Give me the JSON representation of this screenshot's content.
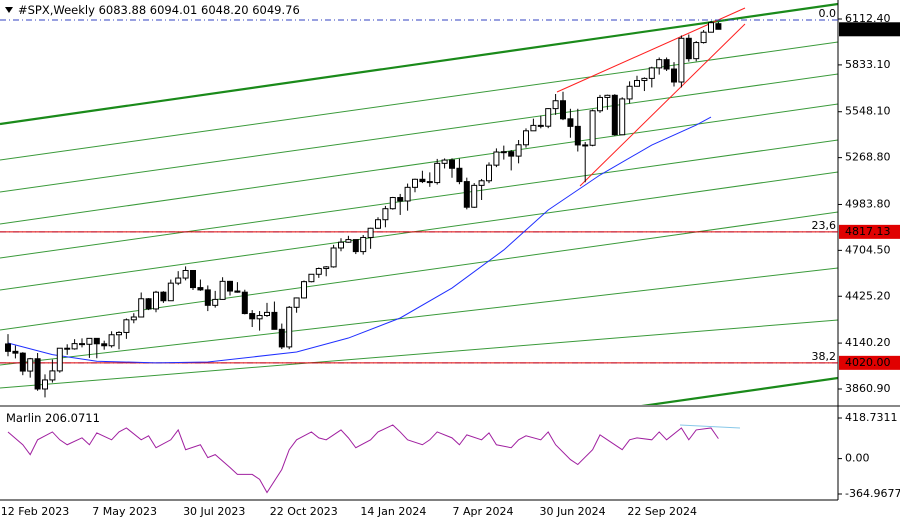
{
  "chart_data": [
    {
      "type": "candlestick",
      "title": "#SPX,Weekly",
      "header_values": [
        "6083.88",
        "6094.01",
        "6048.20",
        "6049.76"
      ],
      "candles": [
        [
          4135,
          4195,
          4060,
          4090
        ],
        [
          4090,
          4125,
          4047,
          4079
        ],
        [
          4079,
          4085,
          3945,
          3970
        ],
        [
          3970,
          4050,
          3930,
          4045
        ],
        [
          4045,
          4080,
          3850,
          3861
        ],
        [
          3861,
          3950,
          3810,
          3916
        ],
        [
          3916,
          4040,
          3900,
          3971
        ],
        [
          3971,
          4110,
          3960,
          4109
        ],
        [
          4109,
          4133,
          4069,
          4105
        ],
        [
          4105,
          4164,
          4100,
          4137
        ],
        [
          4137,
          4169,
          4114,
          4133
        ],
        [
          4133,
          4170,
          4050,
          4169
        ],
        [
          4169,
          4170,
          4048,
          4136
        ],
        [
          4136,
          4155,
          4100,
          4124
        ],
        [
          4124,
          4212,
          4113,
          4191
        ],
        [
          4191,
          4212,
          4103,
          4205
        ],
        [
          4205,
          4290,
          4166,
          4282
        ],
        [
          4282,
          4322,
          4261,
          4299
        ],
        [
          4299,
          4448,
          4296,
          4410
        ],
        [
          4410,
          4414,
          4341,
          4348
        ],
        [
          4348,
          4458,
          4328,
          4450
        ],
        [
          4450,
          4456,
          4385,
          4398
        ],
        [
          4398,
          4527,
          4397,
          4505
        ],
        [
          4505,
          4578,
          4493,
          4536
        ],
        [
          4536,
          4607,
          4522,
          4582
        ],
        [
          4582,
          4584,
          4463,
          4478
        ],
        [
          4478,
          4527,
          4458,
          4464
        ],
        [
          4464,
          4491,
          4335,
          4370
        ],
        [
          4370,
          4458,
          4356,
          4406
        ],
        [
          4406,
          4541,
          4404,
          4516
        ],
        [
          4516,
          4519,
          4430,
          4457
        ],
        [
          4457,
          4511,
          4447,
          4450
        ],
        [
          4450,
          4465,
          4315,
          4320
        ],
        [
          4320,
          4341,
          4238,
          4288
        ],
        [
          4288,
          4335,
          4216,
          4308
        ],
        [
          4308,
          4385,
          4300,
          4327
        ],
        [
          4327,
          4393,
          4223,
          4224
        ],
        [
          4224,
          4259,
          4104,
          4117
        ],
        [
          4117,
          4366,
          4103,
          4358
        ],
        [
          4358,
          4418,
          4325,
          4415
        ],
        [
          4415,
          4521,
          4411,
          4514
        ],
        [
          4514,
          4560,
          4510,
          4559
        ],
        [
          4559,
          4600,
          4537,
          4594
        ],
        [
          4594,
          4609,
          4547,
          4604
        ],
        [
          4604,
          4738,
          4599,
          4719
        ],
        [
          4719,
          4778,
          4699,
          4754
        ],
        [
          4754,
          4793,
          4751,
          4770
        ],
        [
          4770,
          4770,
          4682,
          4697
        ],
        [
          4697,
          4798,
          4679,
          4783
        ],
        [
          4783,
          4842,
          4714,
          4839
        ],
        [
          4839,
          4906,
          4835,
          4891
        ],
        [
          4891,
          4975,
          4845,
          4958
        ],
        [
          4958,
          5030,
          4952,
          5026
        ],
        [
          5026,
          5048,
          4920,
          5005
        ],
        [
          5005,
          5111,
          4946,
          5088
        ],
        [
          5088,
          5141,
          5058,
          5137
        ],
        [
          5137,
          5189,
          5114,
          5123
        ],
        [
          5123,
          5179,
          5091,
          5117
        ],
        [
          5117,
          5261,
          5105,
          5234
        ],
        [
          5234,
          5264,
          5203,
          5254
        ],
        [
          5254,
          5264,
          5146,
          5204
        ],
        [
          5204,
          5263,
          5107,
          5123
        ],
        [
          5123,
          5147,
          4954,
          4967
        ],
        [
          4967,
          5114,
          4963,
          5100
        ],
        [
          5100,
          5139,
          5011,
          5128
        ],
        [
          5128,
          5240,
          5114,
          5223
        ],
        [
          5223,
          5325,
          5211,
          5303
        ],
        [
          5303,
          5342,
          5257,
          5305
        ],
        [
          5305,
          5315,
          5191,
          5278
        ],
        [
          5278,
          5376,
          5234,
          5347
        ],
        [
          5347,
          5447,
          5330,
          5432
        ],
        [
          5432,
          5506,
          5432,
          5465
        ],
        [
          5465,
          5524,
          5447,
          5460
        ],
        [
          5460,
          5570,
          5448,
          5567
        ],
        [
          5567,
          5656,
          5529,
          5615
        ],
        [
          5615,
          5670,
          5497,
          5505
        ],
        [
          5505,
          5566,
          5390,
          5459
        ],
        [
          5459,
          5566,
          5306,
          5346
        ],
        [
          5346,
          5364,
          5119,
          5344
        ],
        [
          5344,
          5562,
          5338,
          5554
        ],
        [
          5554,
          5651,
          5541,
          5635
        ],
        [
          5635,
          5652,
          5560,
          5648
        ],
        [
          5648,
          5655,
          5402,
          5408
        ],
        [
          5408,
          5636,
          5406,
          5626
        ],
        [
          5626,
          5733,
          5598,
          5703
        ],
        [
          5703,
          5767,
          5701,
          5738
        ],
        [
          5738,
          5757,
          5674,
          5751
        ],
        [
          5751,
          5822,
          5696,
          5815
        ],
        [
          5815,
          5878,
          5774,
          5865
        ],
        [
          5865,
          5878,
          5796,
          5808
        ],
        [
          5808,
          5850,
          5702,
          5729
        ],
        [
          5729,
          6012,
          5696,
          5995
        ],
        [
          5995,
          6018,
          5853,
          5871
        ],
        [
          5871,
          5978,
          5855,
          5969
        ],
        [
          5969,
          6045,
          5963,
          6032
        ],
        [
          6032,
          6100,
          6031,
          6090
        ],
        [
          6083.88,
          6094.01,
          6048.2,
          6049.76
        ]
      ],
      "ma": {
        "color": "#2030ff",
        "x": [
          0,
          6,
          12,
          20,
          27,
          39,
          46,
          53,
          60,
          67,
          73,
          80,
          87,
          93,
          95
        ],
        "values": [
          4141,
          4070,
          4030,
          4020,
          4025,
          4086,
          4171,
          4293,
          4475,
          4707,
          4950,
          5163,
          5345,
          5467,
          5516
        ]
      },
      "levels": [
        {
          "value": 4817.13,
          "label": "4817.13",
          "color": "#e00000"
        },
        {
          "value": 4020,
          "label": "4020.00",
          "color": "#e00000"
        }
      ],
      "fib": [
        {
          "value": 6106,
          "label": "0.0"
        },
        {
          "value": 4817.13,
          "label": "23,6"
        },
        {
          "value": 4020,
          "label": "38,2"
        }
      ],
      "ylim": [
        3763.5,
        6228
      ],
      "yticks": [
        {
          "value": 6112.4,
          "label": "6112.40"
        },
        {
          "value": 5833.1,
          "label": "5833.10"
        },
        {
          "value": 5548.1,
          "label": "5548.10"
        },
        {
          "value": 5268.8,
          "label": "5268.80"
        },
        {
          "value": 4983.8,
          "label": "4983.80"
        },
        {
          "value": 4704.5,
          "label": "4704.50"
        },
        {
          "value": 4425.2,
          "label": "4425.20"
        },
        {
          "value": 4140.2,
          "label": "4140.20"
        },
        {
          "value": 3860.9,
          "label": "3860.90"
        }
      ],
      "x_labels": [
        "12 Feb 2023",
        "7 May 2023",
        "30 Jul 2023",
        "22 Oct 2023",
        "14 Jan 2024",
        "7 Apr 2024",
        "30 Jun 2024",
        "22 Sep 2024"
      ]
    },
    {
      "type": "line",
      "x": [
        0,
        2,
        3,
        4,
        6,
        7,
        8,
        10,
        11,
        12,
        14,
        15,
        16,
        18,
        19,
        20,
        22,
        23,
        24,
        26,
        27,
        28,
        30,
        31,
        33,
        34,
        35,
        37,
        38,
        39,
        41,
        42,
        43,
        45,
        46,
        47,
        49,
        50,
        52,
        53,
        54,
        56,
        57,
        58,
        60,
        61,
        62,
        64,
        65,
        66,
        68,
        69,
        70,
        72,
        73,
        74,
        76,
        77,
        79,
        80,
        81,
        83,
        84,
        85,
        87,
        88,
        89,
        91,
        92,
        93,
        95,
        96
      ],
      "series": [
        {
          "name": "Marlin",
          "color": "#a020a0",
          "values": [
            275,
            143,
            41,
            194,
            275,
            194,
            143,
            214,
            143,
            265,
            194,
            275,
            316,
            194,
            235,
            112,
            194,
            296,
            92,
            143,
            10,
            41,
            -92,
            -163,
            -163,
            -214,
            -350,
            -112,
            92,
            194,
            275,
            214,
            194,
            296,
            214,
            112,
            194,
            275,
            347,
            275,
            194,
            143,
            194,
            275,
            214,
            143,
            245,
            194,
            265,
            143,
            112,
            194,
            235,
            194,
            275,
            143,
            -10,
            -61,
            92,
            245,
            194,
            92,
            194,
            214,
            194,
            275,
            194,
            316,
            194,
            296,
            316,
            206.0711
          ]
        }
      ],
      "ylim": [
        -427,
        522
      ],
      "yticks": [
        418.7311,
        {
          "value": 0,
          "label": "0.00"
        },
        -364.9677
      ]
    }
  ]
}
